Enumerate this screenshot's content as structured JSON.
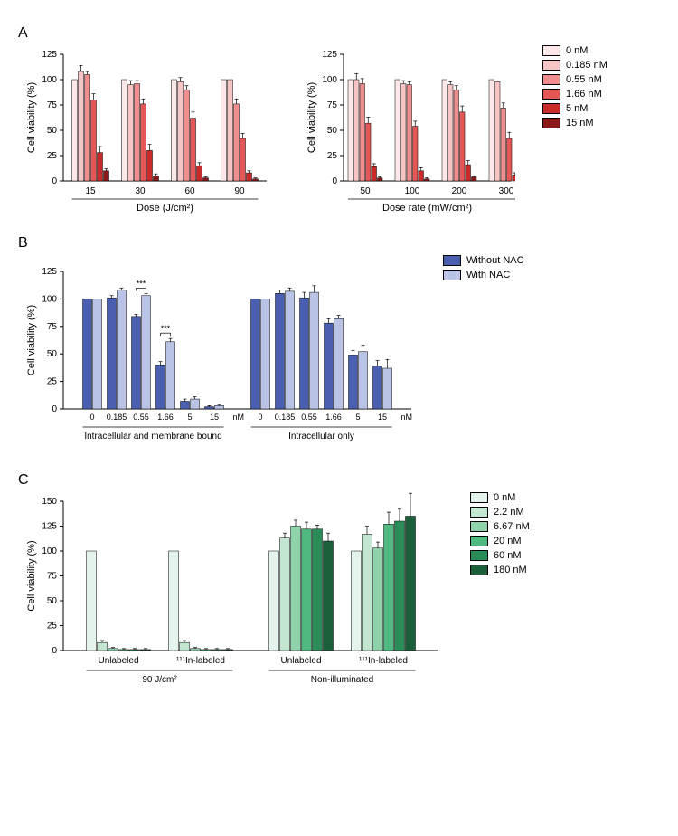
{
  "panelA": {
    "label": "A",
    "ylabel": "Cell viability (%)",
    "ylim": [
      0,
      125
    ],
    "ytick_step": 25,
    "legend": [
      {
        "label": "0 nM",
        "color": "#fce8e8"
      },
      {
        "label": "0.185 nM",
        "color": "#f7c5c5"
      },
      {
        "label": "0.55 nM",
        "color": "#ee8e8e"
      },
      {
        "label": "1.66 nM",
        "color": "#e35757"
      },
      {
        "label": "5 nM",
        "color": "#c92a2a"
      },
      {
        "label": "15 nM",
        "color": "#8a1818"
      }
    ],
    "left": {
      "xlabel": "Dose (J/cm²)",
      "groups": [
        "15",
        "30",
        "60",
        "90"
      ],
      "series": [
        {
          "color": "#fce8e8",
          "values": [
            100,
            100,
            100,
            100
          ],
          "err": [
            0,
            0,
            0,
            0
          ]
        },
        {
          "color": "#f7c5c5",
          "values": [
            108,
            95,
            98,
            100
          ],
          "err": [
            6,
            4,
            4,
            0
          ]
        },
        {
          "color": "#ee8e8e",
          "values": [
            105,
            96,
            90,
            76
          ],
          "err": [
            3,
            3,
            4,
            5
          ]
        },
        {
          "color": "#e35757",
          "values": [
            80,
            76,
            62,
            42
          ],
          "err": [
            6,
            5,
            6,
            5
          ]
        },
        {
          "color": "#c92a2a",
          "values": [
            28,
            30,
            15,
            8
          ],
          "err": [
            6,
            6,
            3,
            2
          ]
        },
        {
          "color": "#8a1818",
          "values": [
            10,
            5,
            3,
            2
          ],
          "err": [
            2,
            2,
            1,
            1
          ]
        }
      ]
    },
    "right": {
      "xlabel": "Dose rate (mW/cm²)",
      "groups": [
        "50",
        "100",
        "200",
        "300"
      ],
      "series": [
        {
          "color": "#fce8e8",
          "values": [
            100,
            100,
            100,
            100
          ],
          "err": [
            0,
            0,
            0,
            0
          ]
        },
        {
          "color": "#f7c5c5",
          "values": [
            100,
            96,
            95,
            98
          ],
          "err": [
            6,
            3,
            3,
            0
          ]
        },
        {
          "color": "#ee8e8e",
          "values": [
            96,
            95,
            90,
            72
          ],
          "err": [
            5,
            3,
            4,
            5
          ]
        },
        {
          "color": "#e35757",
          "values": [
            57,
            54,
            68,
            42
          ],
          "err": [
            6,
            5,
            6,
            6
          ]
        },
        {
          "color": "#c92a2a",
          "values": [
            14,
            10,
            16,
            6
          ],
          "err": [
            3,
            3,
            4,
            2
          ]
        },
        {
          "color": "#8a1818",
          "values": [
            3,
            2,
            4,
            2
          ],
          "err": [
            1,
            1,
            1,
            1
          ]
        }
      ]
    }
  },
  "panelB": {
    "label": "B",
    "ylabel": "Cell viability (%)",
    "ylim": [
      0,
      125
    ],
    "ytick_step": 25,
    "legend": [
      {
        "label": "Without NAC",
        "color": "#4a5fb0"
      },
      {
        "label": "With NAC",
        "color": "#b8c3e6"
      }
    ],
    "x_ticks": [
      "0",
      "0.185",
      "0.55",
      "1.66",
      "5",
      "15"
    ],
    "unit": "nM",
    "group_labels": [
      "Intracellular and membrane bound",
      "Intracellular only"
    ],
    "significance": [
      {
        "group": 0,
        "pair": 2,
        "label": "***"
      },
      {
        "group": 0,
        "pair": 3,
        "label": "***"
      }
    ],
    "groups": [
      {
        "series": [
          {
            "color": "#4a5fb0",
            "values": [
              100,
              101,
              84,
              40,
              7,
              2
            ],
            "err": [
              0,
              2,
              2,
              3,
              2,
              1
            ]
          },
          {
            "color": "#b8c3e6",
            "values": [
              100,
              108,
              103,
              61,
              9,
              3
            ],
            "err": [
              0,
              2,
              2,
              3,
              2,
              1
            ]
          }
        ]
      },
      {
        "series": [
          {
            "color": "#4a5fb0",
            "values": [
              100,
              105,
              101,
              78,
              49,
              39
            ],
            "err": [
              0,
              3,
              5,
              4,
              4,
              5
            ]
          },
          {
            "color": "#b8c3e6",
            "values": [
              100,
              107,
              106,
              82,
              52,
              37
            ],
            "err": [
              0,
              3,
              6,
              3,
              6,
              8
            ]
          }
        ]
      }
    ]
  },
  "panelC": {
    "label": "C",
    "ylabel": "Cell viability (%)",
    "ylim": [
      0,
      150
    ],
    "ytick_step": 25,
    "legend": [
      {
        "label": "0 nM",
        "color": "#e4f4ec"
      },
      {
        "label": "2.2 nM",
        "color": "#c2e6d0"
      },
      {
        "label": "6.67 nM",
        "color": "#8fd3ab"
      },
      {
        "label": "20 nM",
        "color": "#4fb97f"
      },
      {
        "label": "60 nM",
        "color": "#2a8c56"
      },
      {
        "label": "180 nM",
        "color": "#1a5f3a"
      }
    ],
    "sub_labels": [
      "Unlabeled",
      "¹¹¹In-labeled",
      "Unlabeled",
      "¹¹¹In-labeled"
    ],
    "main_labels": [
      "90 J/cm²",
      "Non-illuminated"
    ],
    "groups": [
      {
        "values": [
          100,
          8,
          2,
          1,
          1,
          1
        ],
        "err": [
          0,
          2,
          1,
          1,
          1,
          1
        ]
      },
      {
        "values": [
          100,
          8,
          2,
          1,
          1,
          1
        ],
        "err": [
          0,
          2,
          1,
          1,
          1,
          1
        ]
      },
      {
        "values": [
          100,
          113,
          125,
          122,
          122,
          110
        ],
        "err": [
          0,
          5,
          6,
          7,
          4,
          8
        ]
      },
      {
        "values": [
          100,
          117,
          103,
          127,
          130,
          135
        ],
        "err": [
          0,
          8,
          6,
          12,
          12,
          23
        ]
      }
    ]
  },
  "style": {
    "axis_color": "#000000",
    "error_cap": 3,
    "font_family": "Arial",
    "tick_fontsize": 10,
    "label_fontsize": 11,
    "panel_label_fontsize": 16
  }
}
